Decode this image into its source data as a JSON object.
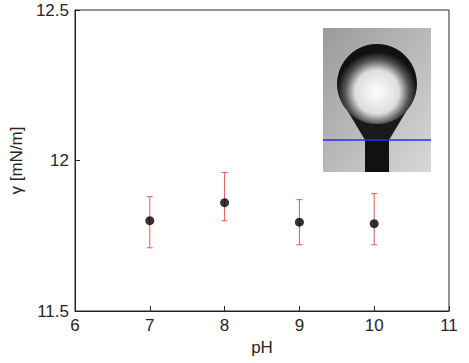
{
  "chart_data": {
    "type": "scatter",
    "x_label": "pH",
    "y_label": "γ [mN/m]",
    "x": [
      7,
      8,
      9,
      10
    ],
    "values": [
      11.8,
      11.86,
      11.795,
      11.79
    ],
    "error_bars": [
      [
        11.71,
        11.88
      ],
      [
        11.8,
        11.96
      ],
      [
        11.72,
        11.87
      ],
      [
        11.72,
        11.89
      ]
    ],
    "color": "#000000",
    "marker": "circle",
    "xlim": [
      6,
      11
    ],
    "xticks": [
      6,
      7,
      8,
      9,
      10,
      11
    ],
    "ylim": [
      11.5,
      12.5
    ],
    "yticks": [
      11.5,
      12,
      12.5
    ],
    "grid": false
  }
}
